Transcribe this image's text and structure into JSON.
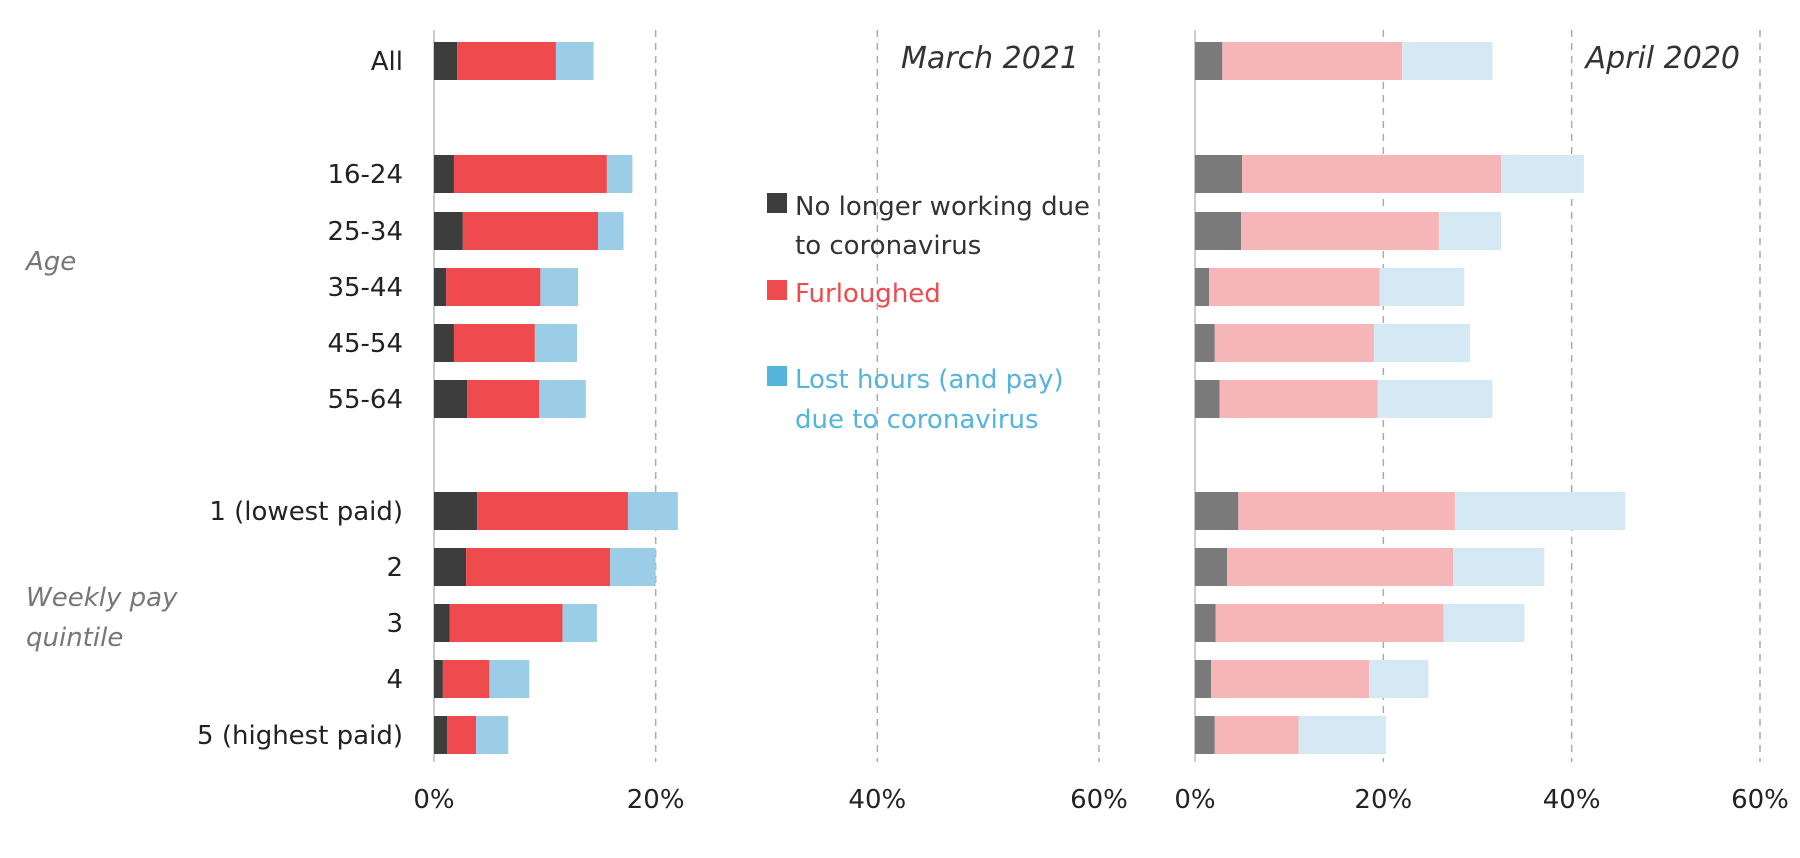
{
  "chart_data": {
    "type": "bar",
    "orientation": "horizontal",
    "stacked": true,
    "categories": [
      "All",
      "16-24",
      "25-34",
      "35-44",
      "45-54",
      "55-64",
      "1 (lowest paid)",
      "2",
      "3",
      "4",
      "5 (highest paid)"
    ],
    "groups": [
      {
        "label": "Age",
        "categories": [
          "16-24",
          "25-34",
          "35-44",
          "45-54",
          "55-64"
        ]
      },
      {
        "label": "Weekly pay quintile",
        "categories": [
          "1 (lowest paid)",
          "2",
          "3",
          "4",
          "5 (highest paid)"
        ]
      }
    ],
    "series_names": [
      "No longer working due to coronavirus",
      "Furloughed",
      "Lost hours (and pay) due to coronavirus"
    ],
    "legend_placement": "center",
    "xlim": [
      0,
      60
    ],
    "xticks": [
      "0%",
      "20%",
      "40%",
      "60%"
    ],
    "grid": true,
    "panels": [
      {
        "title": "March 2021",
        "colors": [
          "#3d3d3d",
          "#ef4a4d",
          "#9ccde6"
        ],
        "series": [
          {
            "name": "No longer working due to coronavirus",
            "values": [
              2.1,
              1.8,
              2.6,
              1.1,
              1.8,
              3.0,
              3.9,
              2.9,
              1.4,
              0.8,
              1.2
            ]
          },
          {
            "name": "Furloughed",
            "values": [
              8.9,
              13.8,
              12.2,
              8.5,
              7.3,
              6.5,
              13.6,
              13.0,
              10.2,
              4.2,
              2.6
            ]
          },
          {
            "name": "Lost hours (and pay) due to coronavirus",
            "values": [
              3.4,
              2.3,
              2.3,
              3.4,
              3.8,
              4.2,
              4.5,
              4.1,
              3.1,
              3.6,
              2.9
            ]
          }
        ]
      },
      {
        "title": "April 2020",
        "colors": [
          "#7a7a7a",
          "#f6b5b6",
          "#d5e9f4"
        ],
        "series": [
          {
            "name": "No longer working due to coronavirus",
            "values": [
              2.9,
              5.0,
              4.9,
              1.5,
              2.1,
              2.6,
              4.6,
              3.4,
              2.2,
              1.7,
              2.1
            ]
          },
          {
            "name": "Furloughed",
            "values": [
              19.1,
              27.5,
              21.0,
              18.1,
              16.9,
              16.8,
              23.0,
              24.0,
              24.2,
              16.8,
              8.9
            ]
          },
          {
            "name": "Lost hours (and pay) due to coronavirus",
            "values": [
              9.6,
              8.8,
              6.6,
              9.0,
              10.2,
              12.2,
              18.1,
              9.7,
              8.6,
              6.3,
              9.3
            ]
          }
        ]
      }
    ]
  },
  "legend": {
    "items": [
      {
        "lines": [
          "No longer working due",
          "to coronavirus"
        ],
        "color": "#3d3d3d"
      },
      {
        "lines": [
          "Furloughed"
        ],
        "color": "#ef4a4d"
      },
      {
        "lines": [
          "Lost hours (and pay)",
          "due to coronavirus"
        ],
        "color": "#54b4dc"
      }
    ]
  }
}
